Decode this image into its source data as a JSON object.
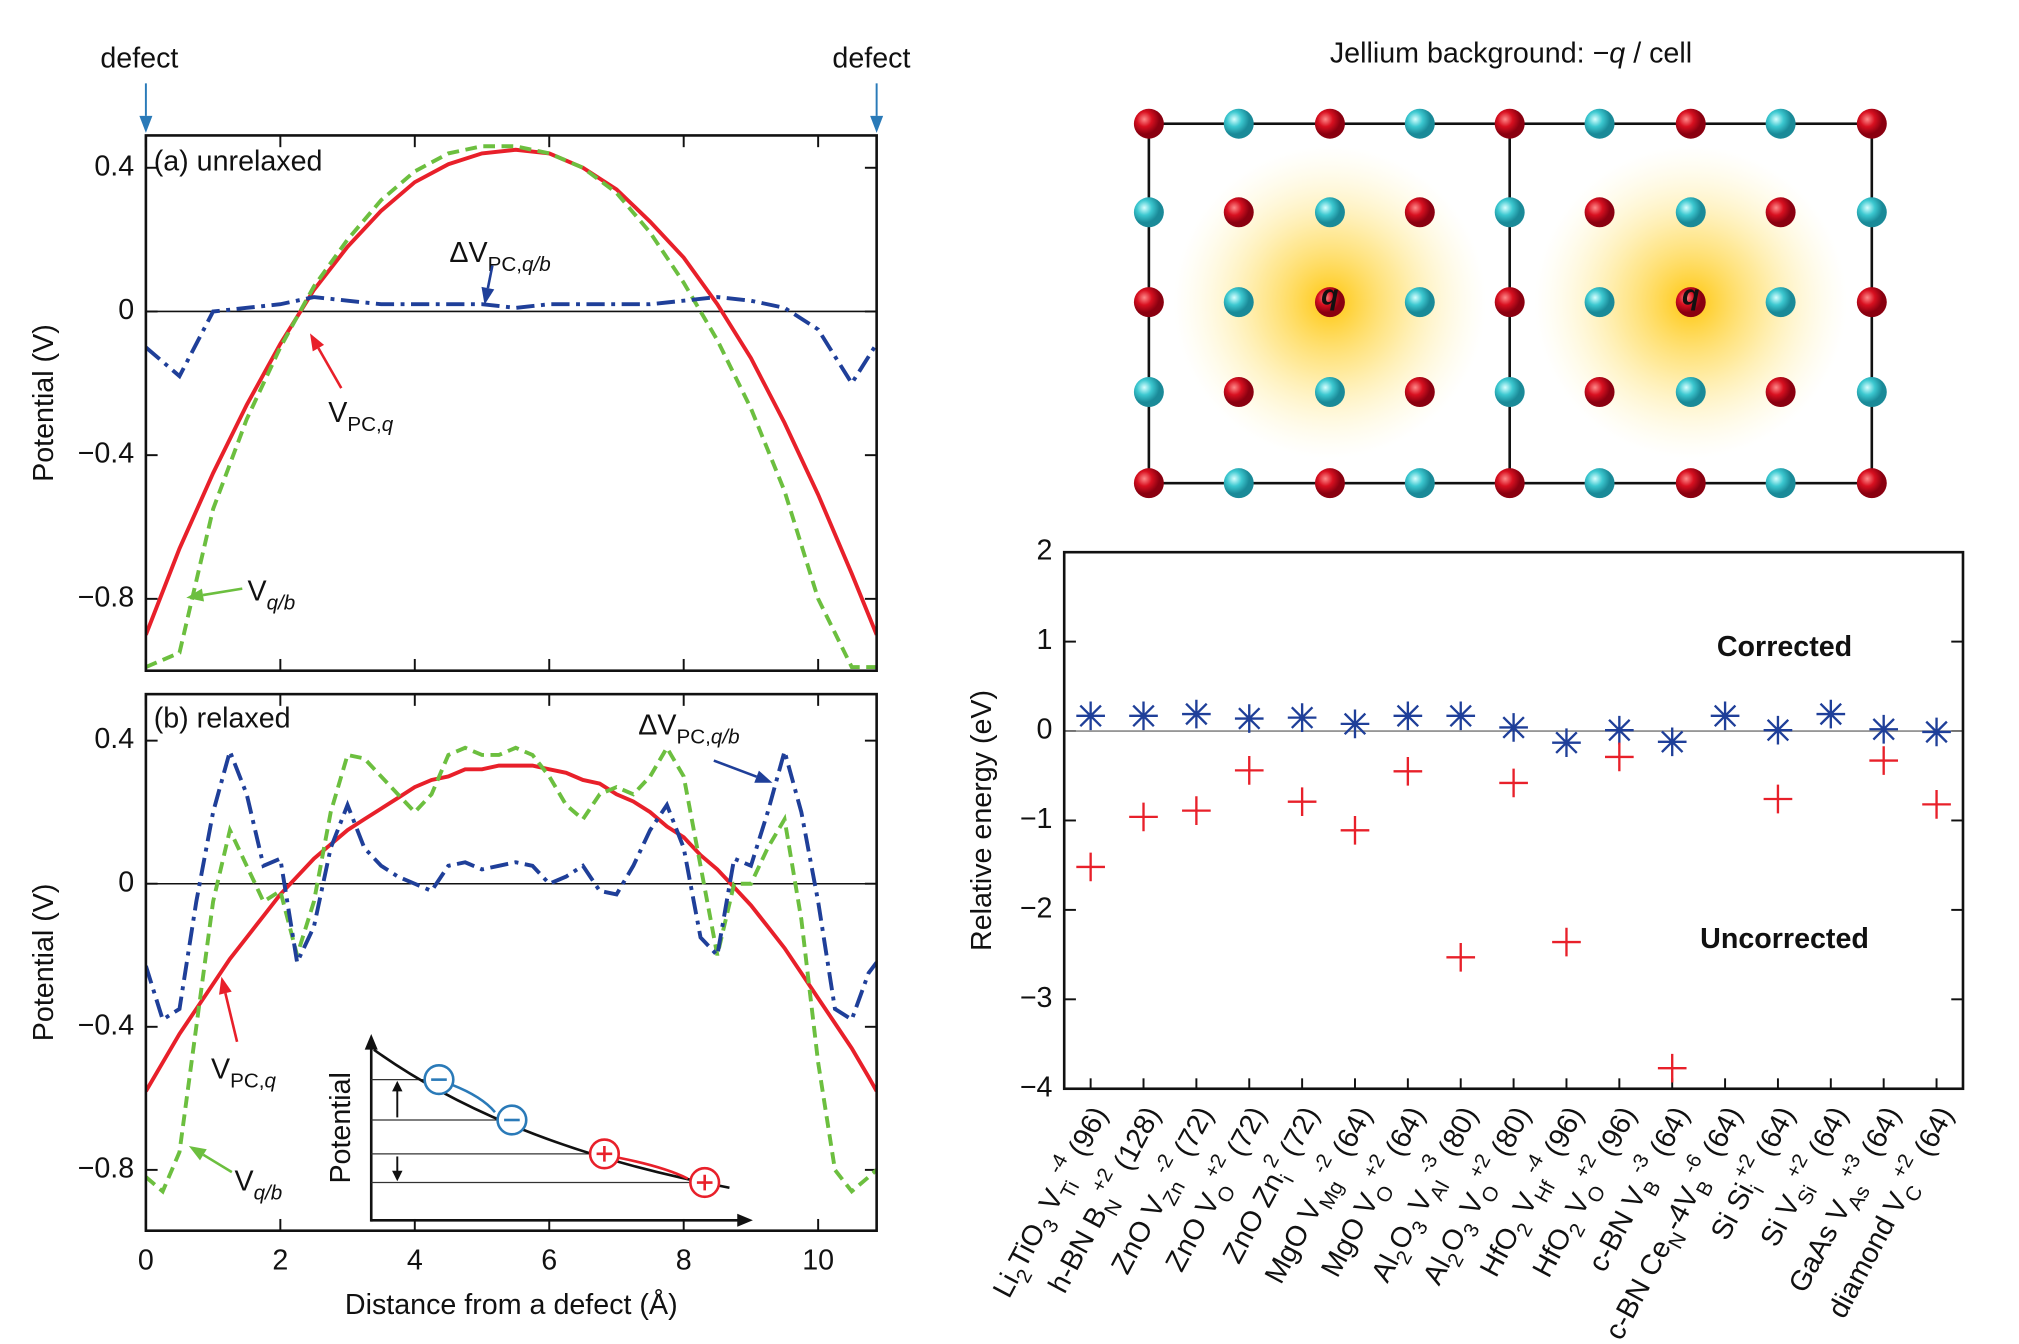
{
  "diagram": {
    "title": [
      {
        "text": "Jellium background: −"
      },
      {
        "text": "q",
        "style": "italic"
      },
      {
        "text": " / cell"
      }
    ],
    "charge_labels": [
      "q",
      "q"
    ]
  },
  "chart_data": [
    {
      "type": "line",
      "panel_label": "(a) unrelaxed",
      "ylabel": "Potential (V)",
      "annotations": [
        "defect",
        "defect"
      ],
      "x": [
        0,
        0.5,
        1,
        1.5,
        2,
        2.5,
        3,
        3.5,
        4,
        4.5,
        5,
        5.5,
        6,
        6.5,
        7,
        7.5,
        8,
        8.5,
        9,
        9.5,
        10,
        10.5,
        10.87
      ],
      "xlim": [
        0,
        10.87
      ],
      "xticks": [
        0,
        2,
        4,
        6,
        8,
        10
      ],
      "xtick_labels": false,
      "ylim": [
        -1.0,
        0.49
      ],
      "yticks": [
        0.4,
        0,
        {
          "value": -0.4,
          "label": "−0.4"
        },
        {
          "value": -0.8,
          "label": "−0.8"
        }
      ],
      "zero_line": true,
      "series": [
        {
          "label": [
            {
              "text": "V"
            },
            {
              "text": "PC,",
              "shift": "sub"
            },
            {
              "text": "q",
              "shift": "sub",
              "style": "italic"
            }
          ],
          "color": "#e8202a",
          "dash": "solid",
          "values": [
            -0.9,
            -0.66,
            -0.45,
            -0.26,
            -0.09,
            0.06,
            0.18,
            0.28,
            0.36,
            0.41,
            0.44,
            0.45,
            0.44,
            0.4,
            0.34,
            0.25,
            0.15,
            0.02,
            -0.13,
            -0.31,
            -0.51,
            -0.73,
            -0.9
          ]
        },
        {
          "label": [
            {
              "text": "V"
            },
            {
              "text": "q/b",
              "shift": "sub",
              "style": "italic"
            }
          ],
          "color": "#6cbf3f",
          "dash": "dashed",
          "values": [
            -0.99,
            -0.95,
            -0.55,
            -0.3,
            -0.1,
            0.07,
            0.2,
            0.31,
            0.39,
            0.44,
            0.46,
            0.46,
            0.44,
            0.4,
            0.33,
            0.22,
            0.08,
            -0.08,
            -0.27,
            -0.5,
            -0.8,
            -0.99,
            -0.99
          ]
        },
        {
          "label": [
            {
              "text": "ΔV"
            },
            {
              "text": "PC,",
              "shift": "sub"
            },
            {
              "text": "q/b",
              "shift": "sub",
              "style": "italic"
            }
          ],
          "color": "#1f3f99",
          "dash": "dashdot",
          "values": [
            -0.1,
            -0.18,
            0.0,
            0.01,
            0.02,
            0.04,
            0.03,
            0.02,
            0.02,
            0.02,
            0.02,
            0.01,
            0.02,
            0.02,
            0.02,
            0.02,
            0.03,
            0.04,
            0.03,
            0.01,
            -0.05,
            -0.2,
            -0.09
          ]
        }
      ]
    },
    {
      "type": "line",
      "panel_label": "(b) relaxed",
      "ylabel": "Potential (V)",
      "xlabel": "Distance from a defect (Å)",
      "inset_label": "Potential",
      "x": [
        0,
        0.25,
        0.5,
        0.75,
        1,
        1.25,
        1.5,
        1.75,
        2,
        2.25,
        2.5,
        2.75,
        3,
        3.25,
        3.5,
        3.75,
        4,
        4.25,
        4.5,
        4.75,
        5,
        5.25,
        5.5,
        5.75,
        6,
        6.25,
        6.5,
        6.75,
        7,
        7.25,
        7.5,
        7.75,
        8,
        8.25,
        8.5,
        8.75,
        9,
        9.25,
        9.5,
        9.75,
        10,
        10.25,
        10.5,
        10.75,
        10.87
      ],
      "xlim": [
        0,
        10.87
      ],
      "xticks": [
        0,
        2,
        4,
        6,
        8,
        10
      ],
      "ylim": [
        -0.97,
        0.53
      ],
      "yticks": [
        0.4,
        0,
        {
          "value": -0.4,
          "label": "−0.4"
        },
        {
          "value": -0.8,
          "label": "−0.8"
        }
      ],
      "zero_line": true,
      "series": [
        {
          "label": [
            {
              "text": "V"
            },
            {
              "text": "PC,",
              "shift": "sub"
            },
            {
              "text": "q",
              "shift": "sub",
              "style": "italic"
            }
          ],
          "color": "#e8202a",
          "dash": "solid",
          "values": [
            -0.58,
            -0.5,
            -0.42,
            -0.35,
            -0.28,
            -0.21,
            -0.15,
            -0.09,
            -0.03,
            0.02,
            0.07,
            0.11,
            0.15,
            0.18,
            0.21,
            0.24,
            0.27,
            0.29,
            0.3,
            0.32,
            0.32,
            0.33,
            0.33,
            0.33,
            0.32,
            0.31,
            0.29,
            0.28,
            0.25,
            0.23,
            0.2,
            0.16,
            0.13,
            0.08,
            0.04,
            -0.01,
            -0.06,
            -0.12,
            -0.18,
            -0.25,
            -0.32,
            -0.39,
            -0.46,
            -0.54,
            -0.58
          ]
        },
        {
          "label": [
            {
              "text": "V"
            },
            {
              "text": "q/b",
              "shift": "sub",
              "style": "italic"
            }
          ],
          "color": "#6cbf3f",
          "dash": "dashed",
          "values": [
            -0.82,
            -0.86,
            -0.75,
            -0.4,
            -0.05,
            0.15,
            0.05,
            -0.05,
            -0.02,
            -0.2,
            -0.05,
            0.2,
            0.36,
            0.35,
            0.3,
            0.25,
            0.2,
            0.25,
            0.36,
            0.38,
            0.36,
            0.36,
            0.38,
            0.36,
            0.3,
            0.22,
            0.18,
            0.25,
            0.27,
            0.25,
            0.3,
            0.38,
            0.3,
            0.05,
            -0.2,
            0.0,
            0.0,
            0.1,
            0.18,
            -0.1,
            -0.5,
            -0.8,
            -0.86,
            -0.82,
            -0.8
          ]
        },
        {
          "label": [
            {
              "text": "ΔV"
            },
            {
              "text": "PC,",
              "shift": "sub"
            },
            {
              "text": "q/b",
              "shift": "sub",
              "style": "italic"
            }
          ],
          "color": "#1f3f99",
          "dash": "dashdot",
          "values": [
            -0.23,
            -0.38,
            -0.35,
            -0.05,
            0.2,
            0.37,
            0.25,
            0.05,
            0.07,
            -0.22,
            -0.12,
            0.1,
            0.22,
            0.1,
            0.05,
            0.02,
            0.0,
            -0.02,
            0.05,
            0.06,
            0.04,
            0.05,
            0.06,
            0.05,
            0.0,
            0.02,
            0.05,
            -0.02,
            -0.03,
            0.05,
            0.15,
            0.22,
            0.1,
            -0.15,
            -0.2,
            0.07,
            0.05,
            0.2,
            0.37,
            0.2,
            -0.05,
            -0.35,
            -0.38,
            -0.25,
            -0.22
          ]
        }
      ]
    },
    {
      "type": "scatter",
      "ylabel": "Relative energy (eV)",
      "ylim": [
        -4,
        2
      ],
      "yticks": [
        2,
        1,
        0,
        {
          "value": -1,
          "label": "−1"
        },
        {
          "value": -2,
          "label": "−2"
        },
        {
          "value": -3,
          "label": "−3"
        },
        {
          "value": -4,
          "label": "−4"
        }
      ],
      "zero_line": true,
      "categories": [
        [
          {
            "text": "Li"
          },
          {
            "text": "2",
            "shift": "sub"
          },
          {
            "text": "TiO"
          },
          {
            "text": "3",
            "shift": "sub"
          },
          {
            "text": " V"
          },
          {
            "text": "Ti",
            "shift": "sub"
          },
          {
            "text": "-4",
            "shift": "super"
          },
          {
            "text": " (96)"
          }
        ],
        [
          {
            "text": "h-BN B"
          },
          {
            "text": "N",
            "shift": "sub"
          },
          {
            "text": "+2",
            "shift": "super"
          },
          {
            "text": " (128)"
          }
        ],
        [
          {
            "text": "ZnO V"
          },
          {
            "text": "Zn",
            "shift": "sub"
          },
          {
            "text": "-2",
            "shift": "super"
          },
          {
            "text": " (72)"
          }
        ],
        [
          {
            "text": "ZnO V"
          },
          {
            "text": "O",
            "shift": "sub"
          },
          {
            "text": "+2",
            "shift": "super"
          },
          {
            "text": " (72)"
          }
        ],
        [
          {
            "text": "ZnO Zn"
          },
          {
            "text": "i",
            "shift": "sub"
          },
          {
            "text": "2",
            "shift": "super"
          },
          {
            "text": " (72)"
          }
        ],
        [
          {
            "text": "MgO V"
          },
          {
            "text": "Mg",
            "shift": "sub"
          },
          {
            "text": "-2",
            "shift": "super"
          },
          {
            "text": " (64)"
          }
        ],
        [
          {
            "text": "MgO V"
          },
          {
            "text": "O",
            "shift": "sub"
          },
          {
            "text": "+2",
            "shift": "super"
          },
          {
            "text": " (64)"
          }
        ],
        [
          {
            "text": "Al"
          },
          {
            "text": "2",
            "shift": "sub"
          },
          {
            "text": "O"
          },
          {
            "text": "3",
            "shift": "sub"
          },
          {
            "text": " V"
          },
          {
            "text": "Al",
            "shift": "sub"
          },
          {
            "text": "-3",
            "shift": "super"
          },
          {
            "text": " (80)"
          }
        ],
        [
          {
            "text": "Al"
          },
          {
            "text": "2",
            "shift": "sub"
          },
          {
            "text": "O"
          },
          {
            "text": "3",
            "shift": "sub"
          },
          {
            "text": " V"
          },
          {
            "text": "O",
            "shift": "sub"
          },
          {
            "text": "+2",
            "shift": "super"
          },
          {
            "text": " (80)"
          }
        ],
        [
          {
            "text": "HfO"
          },
          {
            "text": "2",
            "shift": "sub"
          },
          {
            "text": " V"
          },
          {
            "text": "Hf",
            "shift": "sub"
          },
          {
            "text": "-4",
            "shift": "super"
          },
          {
            "text": " (96)"
          }
        ],
        [
          {
            "text": "HfO"
          },
          {
            "text": "2",
            "shift": "sub"
          },
          {
            "text": " V"
          },
          {
            "text": "O",
            "shift": "sub"
          },
          {
            "text": "+2",
            "shift": "super"
          },
          {
            "text": " (96)"
          }
        ],
        [
          {
            "text": "c-BN V"
          },
          {
            "text": "B",
            "shift": "sub"
          },
          {
            "text": "-3",
            "shift": "super"
          },
          {
            "text": " (64)"
          }
        ],
        [
          {
            "text": "c-BN Ce"
          },
          {
            "text": "N",
            "shift": "sub"
          },
          {
            "text": "-4V"
          },
          {
            "text": "B",
            "shift": "sub"
          },
          {
            "text": "-6",
            "shift": "super"
          },
          {
            "text": " (64)"
          }
        ],
        [
          {
            "text": "Si Si"
          },
          {
            "text": "i",
            "shift": "sub"
          },
          {
            "text": "+2",
            "shift": "super"
          },
          {
            "text": " (64)"
          }
        ],
        [
          {
            "text": "Si V"
          },
          {
            "text": "Si",
            "shift": "sub"
          },
          {
            "text": "+2",
            "shift": "super"
          },
          {
            "text": " (64)"
          }
        ],
        [
          {
            "text": "GaAs V"
          },
          {
            "text": "As",
            "shift": "sub"
          },
          {
            "text": "+3",
            "shift": "super"
          },
          {
            "text": " (64)"
          }
        ],
        [
          {
            "text": "diamond V"
          },
          {
            "text": "C",
            "shift": "sub"
          },
          {
            "text": "+2",
            "shift": "super"
          },
          {
            "text": " (64)"
          }
        ]
      ],
      "series": [
        {
          "name": "Corrected",
          "color": "#1f3f99",
          "marker": "asterisk",
          "values": [
            0.17,
            0.17,
            0.19,
            0.14,
            0.15,
            0.08,
            0.17,
            0.17,
            0.04,
            -0.13,
            0.01,
            -0.12,
            0.17,
            0.01,
            0.19,
            0.02,
            -0.01
          ]
        },
        {
          "name": "Uncorrected",
          "color": "#e8202a",
          "marker": "plus",
          "values": [
            -1.52,
            -0.96,
            -0.89,
            -0.44,
            -0.79,
            -1.11,
            -0.45,
            -2.53,
            -0.58,
            -2.36,
            -0.29,
            -3.77,
            null,
            -0.76,
            null,
            -0.33,
            -0.82
          ]
        }
      ]
    }
  ]
}
